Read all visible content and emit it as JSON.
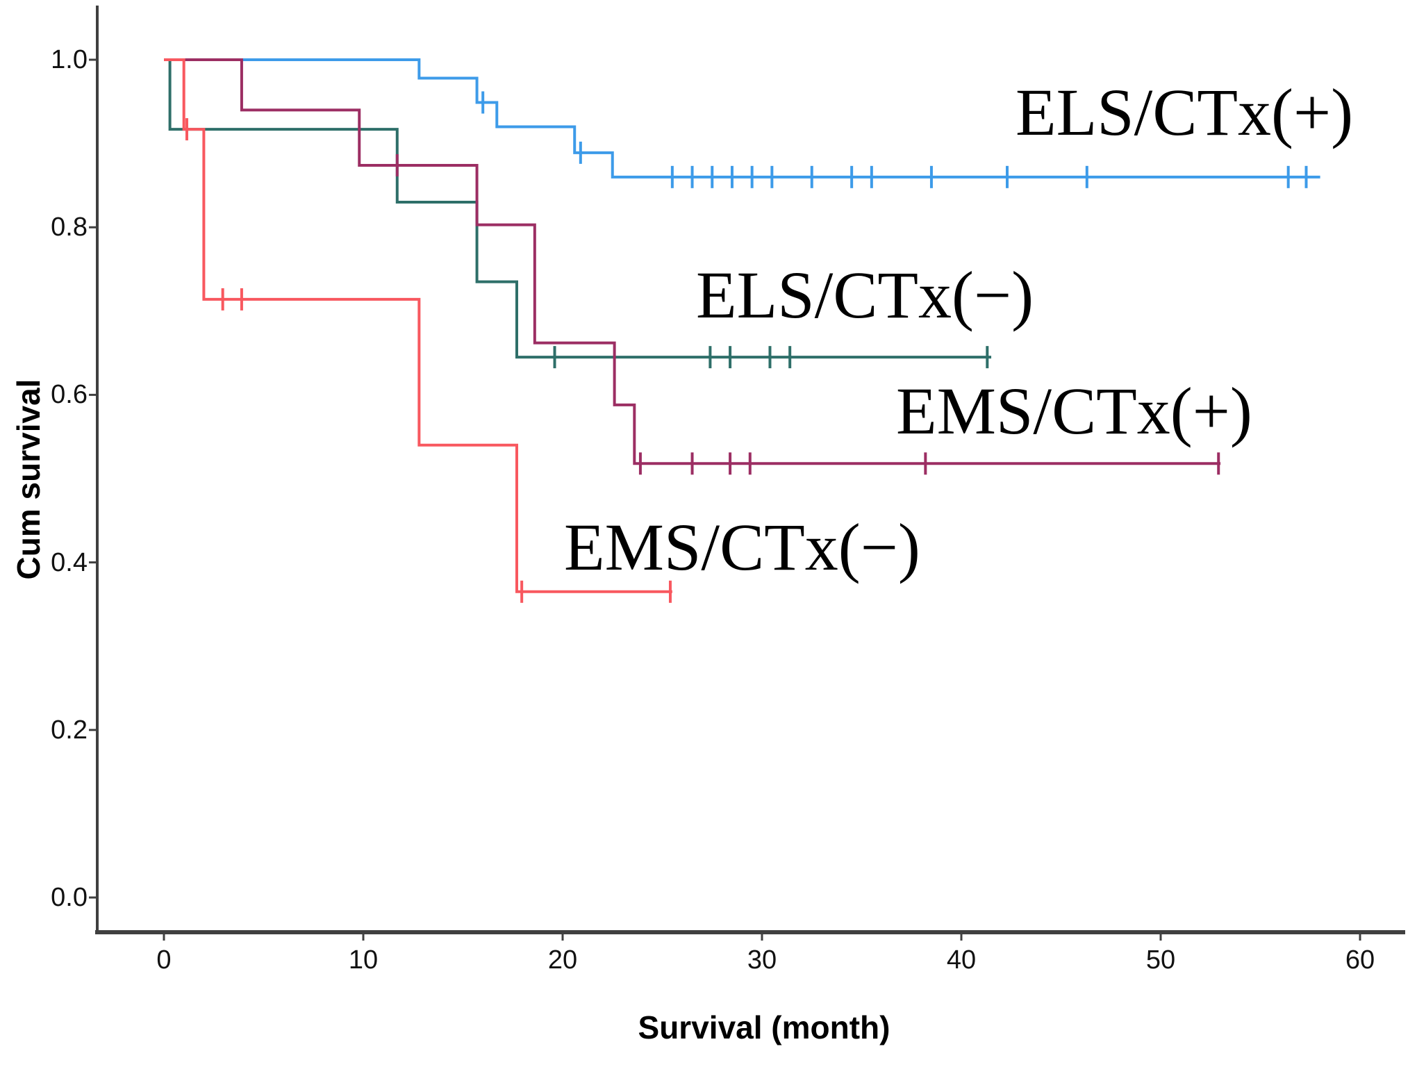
{
  "figure": {
    "background": "#ffffff",
    "axis_color": "#404040",
    "y_axis": {
      "title": "Cum survival",
      "ticks": [
        {
          "value": 1.0,
          "label": "1.0"
        },
        {
          "value": 0.8,
          "label": "0.8"
        },
        {
          "value": 0.6,
          "label": "0.6"
        },
        {
          "value": 0.4,
          "label": "0.4"
        },
        {
          "value": 0.2,
          "label": "0.2"
        },
        {
          "value": 0.0,
          "label": "0.0"
        }
      ]
    },
    "x_axis": {
      "title": "Survival (month)",
      "ticks": [
        {
          "value": 0,
          "label": "0"
        },
        {
          "value": 10,
          "label": "10"
        },
        {
          "value": 20,
          "label": "20"
        },
        {
          "value": 30,
          "label": "30"
        },
        {
          "value": 40,
          "label": "40"
        },
        {
          "value": 50,
          "label": "50"
        },
        {
          "value": 60,
          "label": "60"
        }
      ]
    }
  },
  "chart_data": {
    "type": "line",
    "subtype": "kaplan-meier-step",
    "title": "",
    "xlabel": "Survival (month)",
    "ylabel": "Cum survival",
    "xlim": [
      -3.5,
      62.5
    ],
    "ylim": [
      -0.04,
      1.06
    ],
    "grid": false,
    "legend_position": "inline-annotations",
    "censor_marker": "+",
    "series": [
      {
        "name": "ELS/CTx(+)",
        "color": "#3D9BE9",
        "steps": [
          [
            0,
            1.0
          ],
          [
            12.8,
            0.978
          ],
          [
            15.7,
            0.949
          ],
          [
            16.7,
            0.92
          ],
          [
            20.6,
            0.889
          ],
          [
            22.5,
            0.86
          ]
        ],
        "end": 58.0,
        "censors": [
          [
            16.0,
            0.949
          ],
          [
            20.9,
            0.889
          ],
          [
            25.5,
            0.86
          ],
          [
            26.5,
            0.86
          ],
          [
            27.5,
            0.86
          ],
          [
            28.5,
            0.86
          ],
          [
            29.5,
            0.86
          ],
          [
            30.5,
            0.86
          ],
          [
            32.5,
            0.86
          ],
          [
            34.5,
            0.86
          ],
          [
            35.5,
            0.86
          ],
          [
            38.5,
            0.86
          ],
          [
            42.3,
            0.86
          ],
          [
            46.3,
            0.86
          ],
          [
            56.4,
            0.86
          ],
          [
            57.3,
            0.86
          ]
        ]
      },
      {
        "name": "ELS/CTx(−)",
        "color": "#2E6F69",
        "steps": [
          [
            0,
            1.0
          ],
          [
            0.3,
            0.917
          ],
          [
            11.7,
            0.83
          ],
          [
            15.7,
            0.735
          ],
          [
            17.7,
            0.645
          ]
        ],
        "end": 41.5,
        "censors": [
          [
            19.6,
            0.645
          ],
          [
            27.4,
            0.645
          ],
          [
            28.4,
            0.645
          ],
          [
            30.4,
            0.645
          ],
          [
            31.4,
            0.645
          ],
          [
            41.3,
            0.645
          ]
        ]
      },
      {
        "name": "EMS/CTx(+)",
        "color": "#9C2E63",
        "steps": [
          [
            0,
            1.0
          ],
          [
            3.9,
            0.94
          ],
          [
            9.8,
            0.874
          ],
          [
            15.7,
            0.803
          ],
          [
            18.6,
            0.662
          ],
          [
            22.6,
            0.588
          ],
          [
            23.6,
            0.518
          ]
        ],
        "end": 53.0,
        "censors": [
          [
            11.7,
            0.874
          ],
          [
            23.9,
            0.518
          ],
          [
            26.5,
            0.518
          ],
          [
            28.4,
            0.518
          ],
          [
            29.4,
            0.518
          ],
          [
            38.2,
            0.518
          ],
          [
            52.9,
            0.518
          ]
        ]
      },
      {
        "name": "EMS/CTx(−)",
        "color": "#F8585F",
        "steps": [
          [
            0,
            1.0
          ],
          [
            1.0,
            0.917
          ],
          [
            2.0,
            0.714
          ],
          [
            12.8,
            0.54
          ],
          [
            17.7,
            0.365
          ]
        ],
        "end": 25.5,
        "censors": [
          [
            1.15,
            0.917
          ],
          [
            2.95,
            0.714
          ],
          [
            3.9,
            0.714
          ],
          [
            17.95,
            0.365
          ],
          [
            25.4,
            0.365
          ]
        ]
      }
    ]
  }
}
